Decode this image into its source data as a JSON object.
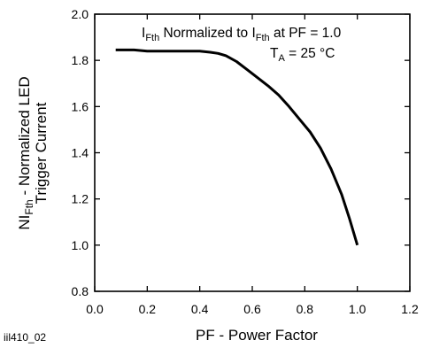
{
  "chart_data": {
    "type": "line",
    "title": "",
    "xlabel": "PF - Power Factor",
    "ylabel": {
      "line1_prefix": "NI",
      "line1_sub": "Fth",
      "line1_suffix": " - Normalized LED",
      "line2": "Trigger Current"
    },
    "xlim": [
      0.0,
      1.2
    ],
    "ylim": [
      0.8,
      2.0
    ],
    "x_ticks": [
      "0.0",
      "0.2",
      "0.4",
      "0.6",
      "0.8",
      "1.0",
      "1.2"
    ],
    "y_ticks": [
      "0.8",
      "1.0",
      "1.2",
      "1.4",
      "1.6",
      "1.8",
      "2.0"
    ],
    "grid": false,
    "annotations": {
      "line1": {
        "a": "I",
        "a_sub": "Fth",
        "b": " Normalized to I",
        "b_sub": "Fth",
        "c": " at PF = 1.0"
      },
      "line2": {
        "a": "T",
        "a_sub": "A",
        "b": " = 25 °C"
      }
    },
    "figure_id": "iil410_02",
    "series": [
      {
        "color": "#000000",
        "x": [
          0.08,
          0.15,
          0.2,
          0.3,
          0.4,
          0.44,
          0.47,
          0.5,
          0.54,
          0.58,
          0.62,
          0.66,
          0.7,
          0.74,
          0.78,
          0.82,
          0.86,
          0.9,
          0.94,
          0.97,
          1.0
        ],
        "y": [
          1.845,
          1.845,
          1.84,
          1.84,
          1.84,
          1.835,
          1.83,
          1.82,
          1.795,
          1.76,
          1.725,
          1.69,
          1.65,
          1.6,
          1.545,
          1.49,
          1.42,
          1.33,
          1.22,
          1.115,
          1.0
        ]
      }
    ]
  }
}
